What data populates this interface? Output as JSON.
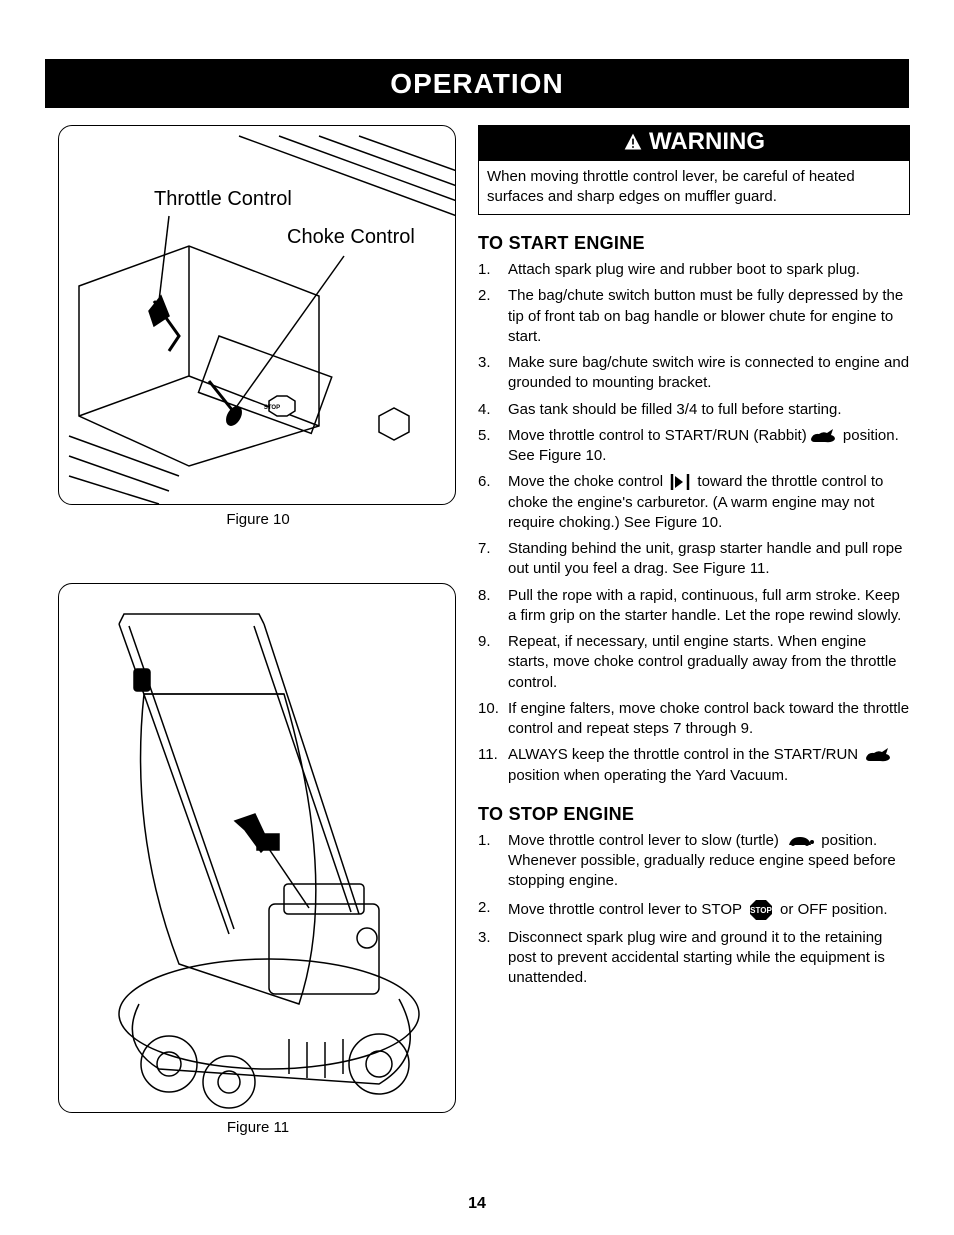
{
  "header": {
    "title": "OPERATION"
  },
  "figures": {
    "fig10": {
      "caption": "Figure 10",
      "labels": {
        "throttle": "Throttle Control",
        "choke": "Choke Control"
      }
    },
    "fig11": {
      "caption": "Figure 11"
    }
  },
  "warning": {
    "heading": "WARNING",
    "body": "When moving throttle control lever, be careful of heated surfaces and sharp edges on muffler guard."
  },
  "start": {
    "heading": "TO START ENGINE",
    "steps": [
      "Attach spark plug wire and rubber boot to spark plug.",
      "The bag/chute switch button must be fully depressed by the tip of front tab on bag handle or blower chute for engine to start.",
      "Make sure bag/chute switch wire is connected to engine and grounded to mounting bracket.",
      "Gas tank should be filled 3/4 to full before starting.",
      {
        "pre": "Move throttle control to START/RUN (Rabbit)",
        "icon": "rabbit",
        "post": " position. See Figure 10."
      },
      {
        "pre": "Move the choke control ",
        "icon": "choke",
        "post": " toward the throttle control to choke the engine's carburetor. (A warm engine may not require choking.) See Figure 10."
      },
      "Standing behind the unit, grasp starter handle and pull rope out until you feel a drag. See Figure 11.",
      "Pull the rope with a rapid, continuous, full arm stroke. Keep a firm grip on the starter handle. Let the rope rewind slowly.",
      "Repeat, if necessary, until engine starts. When engine starts, move choke control gradually away from the throttle control.",
      "If engine falters, move choke control back toward the throttle control and repeat steps 7 through 9.",
      {
        "pre": "ALWAYS keep the throttle control in the START/RUN ",
        "icon": "rabbit2",
        "post": " position when operating the Yard Vacuum."
      }
    ]
  },
  "stop": {
    "heading": "TO STOP ENGINE",
    "steps": [
      {
        "pre": "Move throttle control lever to slow (turtle) ",
        "icon": "turtle",
        "post": " position. Whenever possible, gradually reduce engine speed before stopping engine."
      },
      {
        "pre": "Move throttle control lever to STOP ",
        "icon": "stop",
        "post": " or OFF position."
      },
      "Disconnect spark plug wire and ground it to the retaining post to prevent accidental starting while the equipment is unattended."
    ]
  },
  "page_number": "14",
  "colors": {
    "black": "#000000",
    "white": "#ffffff"
  },
  "icons": {
    "rabbit": "rabbit-icon",
    "rabbit2": "rabbit-icon",
    "choke": "choke-lever-icon",
    "turtle": "turtle-icon",
    "stop": "stop-sign-icon"
  }
}
